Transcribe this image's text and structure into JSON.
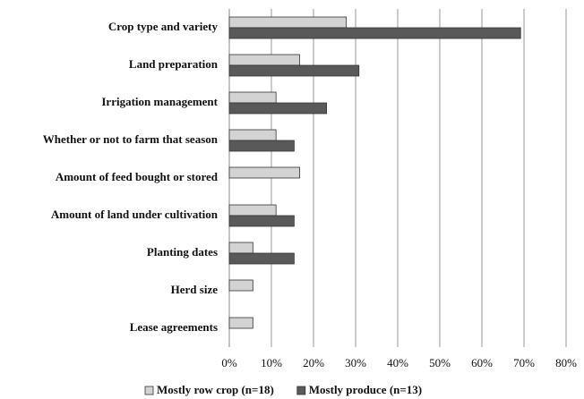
{
  "chart_data": {
    "type": "hbar",
    "categories": [
      "Crop type and variety",
      "Land preparation",
      "Irrigation management",
      "Whether or not to farm that season",
      "Amount of feed bought or stored",
      "Amount of land under cultivation",
      "Planting dates",
      "Herd size",
      "Lease agreements"
    ],
    "series": [
      {
        "name": "Mostly row crop (n=18)",
        "color": "#d3d3d3",
        "values": [
          27.8,
          16.7,
          11.1,
          11.1,
          16.7,
          11.1,
          5.6,
          5.6,
          5.6
        ]
      },
      {
        "name": "Mostly produce (n=13)",
        "color": "#595959",
        "values": [
          69.2,
          30.8,
          23.1,
          15.4,
          null,
          15.4,
          15.4,
          null,
          null
        ]
      }
    ],
    "xlim": [
      0,
      80
    ],
    "xticks": [
      {
        "value": 0,
        "label": "0%"
      },
      {
        "value": 10,
        "label": "10%"
      },
      {
        "value": 20,
        "label": "20%"
      },
      {
        "value": 30,
        "label": "30%"
      },
      {
        "value": 40,
        "label": "40%"
      },
      {
        "value": 50,
        "label": "50%"
      },
      {
        "value": 60,
        "label": "60%"
      },
      {
        "value": 70,
        "label": "70%"
      },
      {
        "value": 80,
        "label": "80%"
      }
    ],
    "grid": true,
    "legend": "bottom"
  }
}
